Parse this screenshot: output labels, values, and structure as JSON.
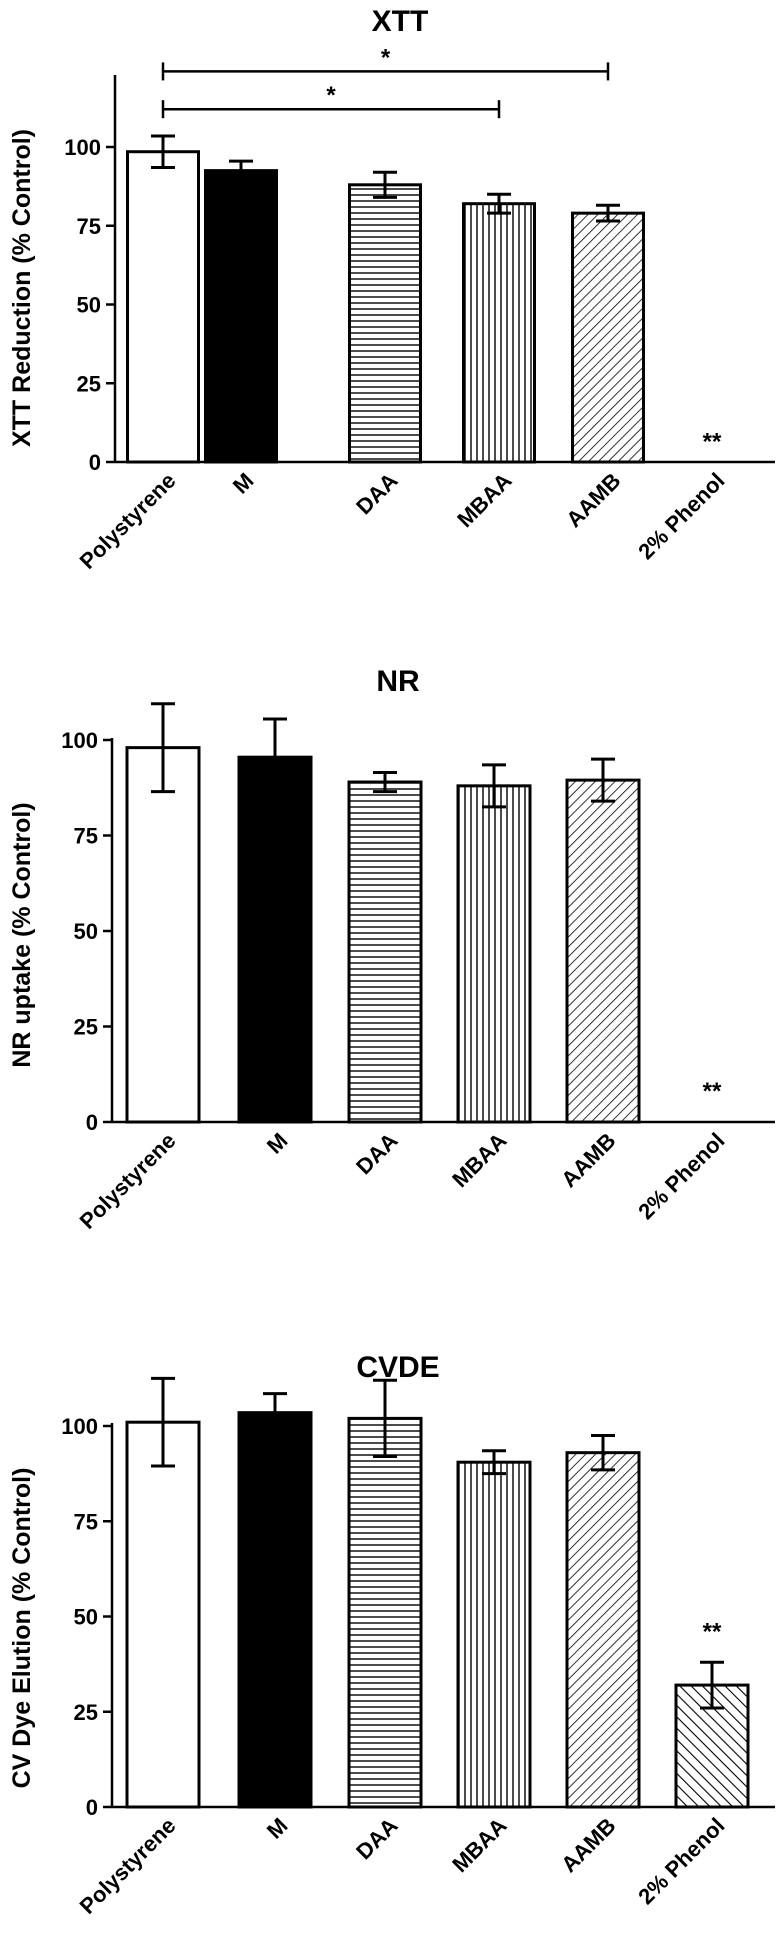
{
  "chart_data": [
    {
      "type": "bar",
      "title": "XTT",
      "ylabel": "XTT Reduction (% Control)",
      "ylim": [
        0,
        125
      ],
      "yticks": [
        0,
        25,
        50,
        75,
        100
      ],
      "categories": [
        "Polystyrene",
        "M",
        "DAA",
        "MBAA",
        "AAMB",
        "2% Phenol"
      ],
      "values": [
        98.5,
        92.5,
        88,
        82,
        79,
        0
      ],
      "errors": [
        5,
        3,
        4,
        3,
        2.5,
        0
      ],
      "fills": [
        "white",
        "black",
        "hlines",
        "vlines",
        "diag",
        "white"
      ],
      "annotations": [
        {
          "category": "2% Phenol",
          "y": 4,
          "text": "**"
        }
      ],
      "significance": [
        {
          "from": "Polystyrene",
          "to": "MBAA",
          "y": 112,
          "text": "*"
        },
        {
          "from": "Polystyrene",
          "to": "AAMB",
          "y": 124,
          "text": "*"
        }
      ]
    },
    {
      "type": "bar",
      "title": "NR",
      "ylabel": "NR uptake (%  Control)",
      "ylim": [
        0,
        110
      ],
      "yticks": [
        0,
        25,
        50,
        75,
        100
      ],
      "categories": [
        "Polystyrene",
        "M",
        "DAA",
        "MBAA",
        "AAMB",
        "2% Phenol"
      ],
      "values": [
        98,
        95.5,
        89,
        88,
        89.5,
        0
      ],
      "errors": [
        11.5,
        10,
        2.5,
        5.5,
        5.5,
        0
      ],
      "fills": [
        "white",
        "black",
        "hlines",
        "vlines",
        "diag",
        "white"
      ],
      "annotations": [
        {
          "category": "2% Phenol",
          "y": 6,
          "text": "**"
        }
      ],
      "significance": []
    },
    {
      "type": "bar",
      "title": "CVDE",
      "ylabel": "CV Dye Elution (% Control)",
      "ylim": [
        0,
        120
      ],
      "yticks": [
        0,
        25,
        50,
        75,
        100
      ],
      "categories": [
        "Polystyrene",
        "M",
        "DAA",
        "MBAA",
        "AAMB",
        "2% Phenol"
      ],
      "values": [
        101,
        103.5,
        102,
        90.5,
        93,
        32
      ],
      "errors": [
        11.5,
        5,
        10,
        3,
        4.5,
        6
      ],
      "fills": [
        "white",
        "black",
        "hlines",
        "vlines",
        "diag",
        "diagr"
      ],
      "annotations": [
        {
          "category": "2% Phenol",
          "y": 44,
          "text": "**"
        }
      ],
      "significance": []
    }
  ]
}
